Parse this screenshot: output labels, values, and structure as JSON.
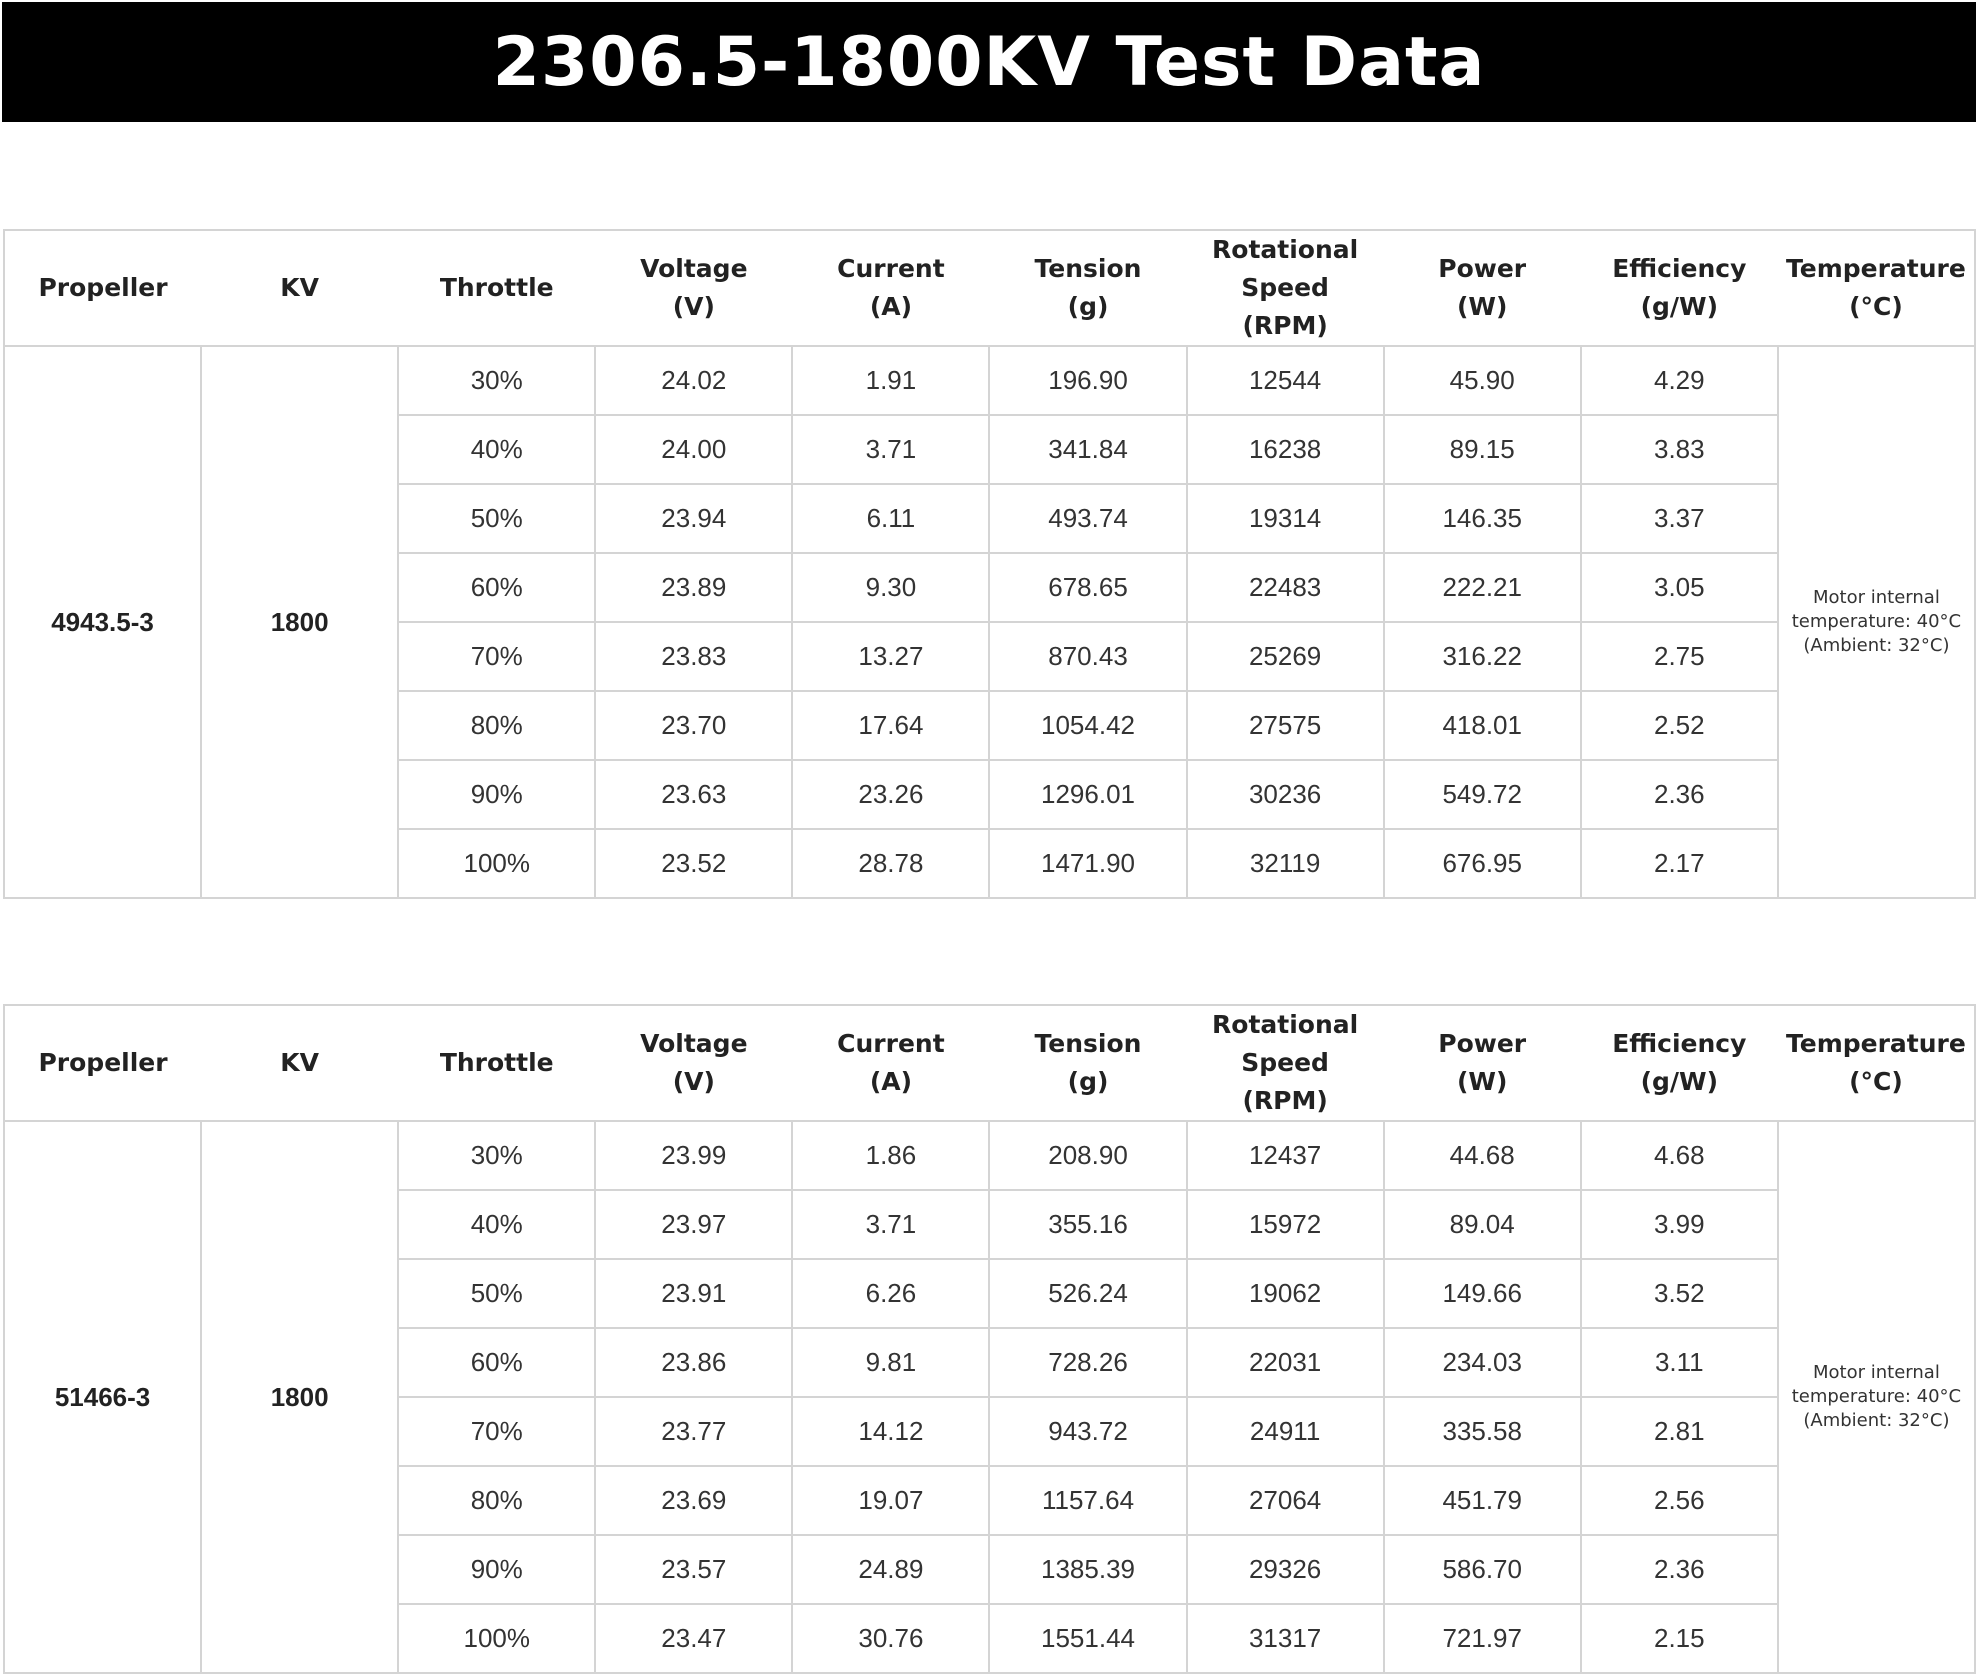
{
  "title": "2306.5-1800KV  Test Data",
  "headers": [
    {
      "line1": "Propeller",
      "line2": ""
    },
    {
      "line1": "KV",
      "line2": ""
    },
    {
      "line1": "Throttle",
      "line2": ""
    },
    {
      "line1": "Voltage",
      "line2": "(V)"
    },
    {
      "line1": "Current",
      "line2": "(A)"
    },
    {
      "line1": "Tension",
      "line2": "(g)"
    },
    {
      "line1": "Rotational Speed",
      "line2": "(RPM)"
    },
    {
      "line1": "Power",
      "line2": "(W)"
    },
    {
      "line1": "Efficiency",
      "line2": "(g/W)"
    },
    {
      "line1": "Temperature",
      "line2": "(°C)"
    }
  ],
  "tables": [
    {
      "propeller": "4943.5-3",
      "kv": "1800",
      "temperature_line1": "Motor internal",
      "temperature_line2": "temperature: 40°C",
      "temperature_line3": "(Ambient: 32°C)",
      "rows": [
        [
          "30%",
          "24.02",
          "1.91",
          "196.90",
          "12544",
          "45.90",
          "4.29"
        ],
        [
          "40%",
          "24.00",
          "3.71",
          "341.84",
          "16238",
          "89.15",
          "3.83"
        ],
        [
          "50%",
          "23.94",
          "6.11",
          "493.74",
          "19314",
          "146.35",
          "3.37"
        ],
        [
          "60%",
          "23.89",
          "9.30",
          "678.65",
          "22483",
          "222.21",
          "3.05"
        ],
        [
          "70%",
          "23.83",
          "13.27",
          "870.43",
          "25269",
          "316.22",
          "2.75"
        ],
        [
          "80%",
          "23.70",
          "17.64",
          "1054.42",
          "27575",
          "418.01",
          "2.52"
        ],
        [
          "90%",
          "23.63",
          "23.26",
          "1296.01",
          "30236",
          "549.72",
          "2.36"
        ],
        [
          "100%",
          "23.52",
          "28.78",
          "1471.90",
          "32119",
          "676.95",
          "2.17"
        ]
      ]
    },
    {
      "propeller": "51466-3",
      "kv": "1800",
      "temperature_line1": "Motor internal",
      "temperature_line2": "temperature: 40°C",
      "temperature_line3": "(Ambient: 32°C)",
      "rows": [
        [
          "30%",
          "23.99",
          "1.86",
          "208.90",
          "12437",
          "44.68",
          "4.68"
        ],
        [
          "40%",
          "23.97",
          "3.71",
          "355.16",
          "15972",
          "89.04",
          "3.99"
        ],
        [
          "50%",
          "23.91",
          "6.26",
          "526.24",
          "19062",
          "149.66",
          "3.52"
        ],
        [
          "60%",
          "23.86",
          "9.81",
          "728.26",
          "22031",
          "234.03",
          "3.11"
        ],
        [
          "70%",
          "23.77",
          "14.12",
          "943.72",
          "24911",
          "335.58",
          "2.81"
        ],
        [
          "80%",
          "23.69",
          "19.07",
          "1157.64",
          "27064",
          "451.79",
          "2.56"
        ],
        [
          "90%",
          "23.57",
          "24.89",
          "1385.39",
          "29326",
          "586.70",
          "2.36"
        ],
        [
          "100%",
          "23.47",
          "30.76",
          "1551.44",
          "31317",
          "721.97",
          "2.15"
        ]
      ]
    }
  ]
}
